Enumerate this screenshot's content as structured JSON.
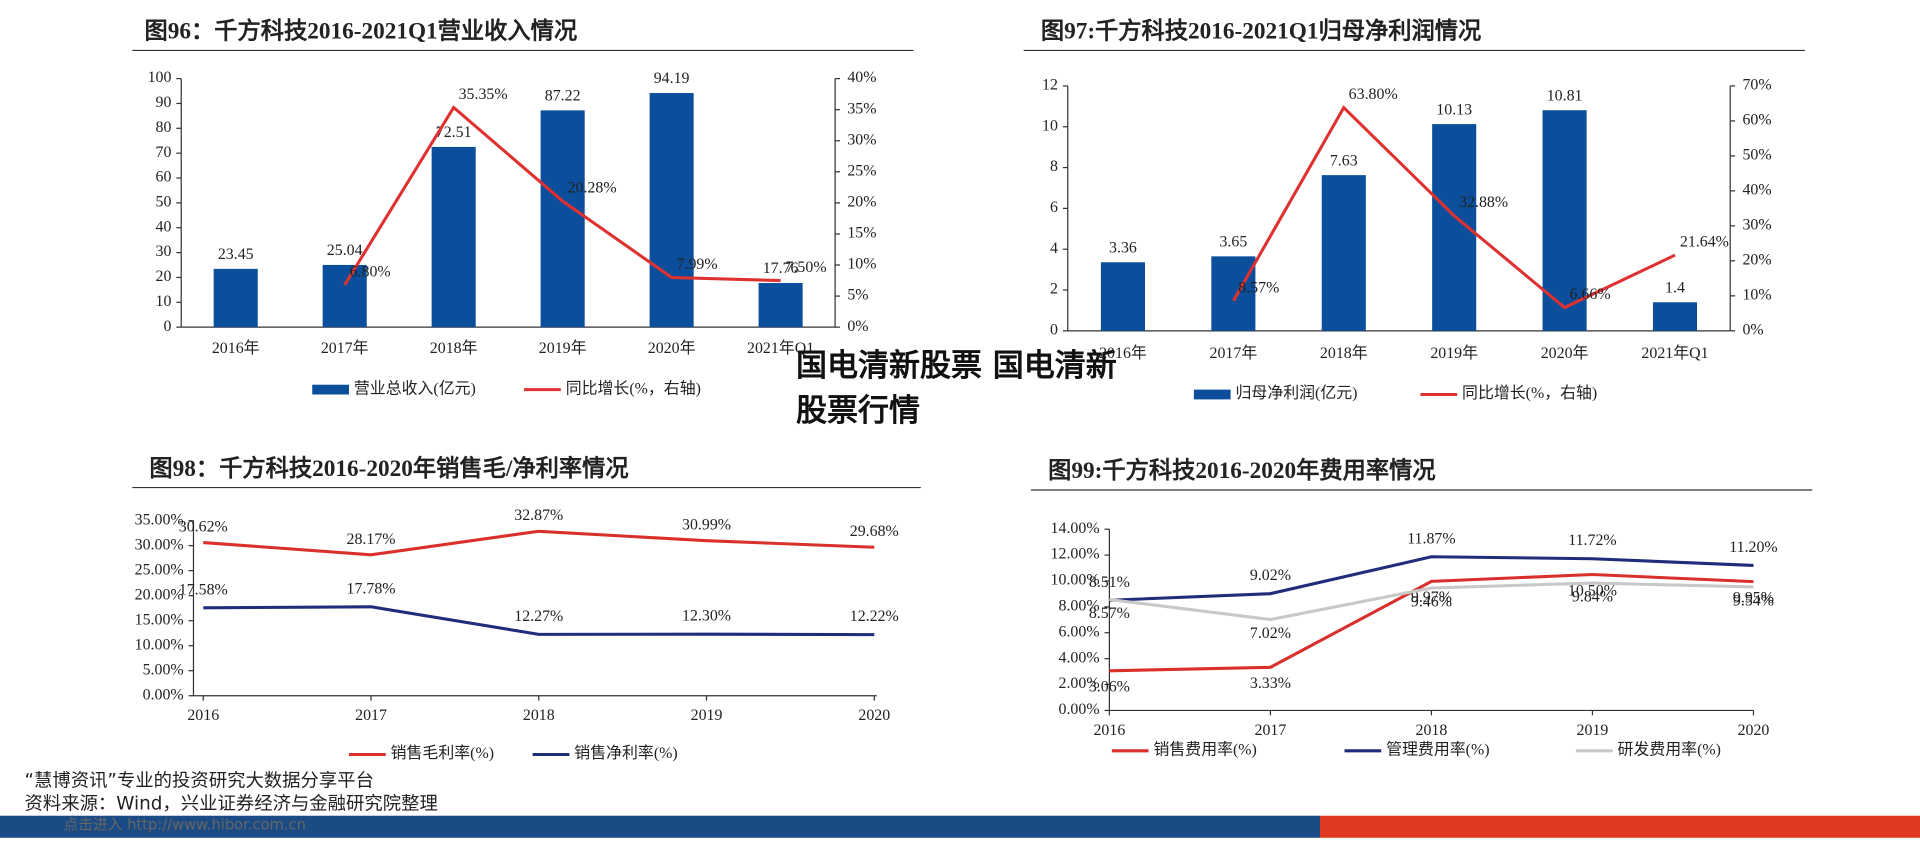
{
  "chart_data": [
    {
      "type": "bar",
      "title": "图96：千方科技2016-2021Q1营业收入情况",
      "categories": [
        "2016年",
        "2017年",
        "2018年",
        "2019年",
        "2020年",
        "2021年Q1"
      ],
      "series": [
        {
          "name": "营业总收入(亿元)",
          "type": "bar",
          "color": "#0b4f9c",
          "values": [
            23.45,
            25.04,
            72.51,
            87.22,
            94.19,
            17.76
          ]
        },
        {
          "name": "同比增长(%，右轴)",
          "type": "line",
          "axis": "y2",
          "color": "#e03131",
          "values": [
            null,
            6.8,
            35.35,
            20.28,
            7.99,
            7.5
          ],
          "value_labels": [
            null,
            "6.80%",
            "35.35%",
            "20.28%",
            "7.99%",
            "7.50%"
          ]
        }
      ],
      "ylim": [
        0,
        100
      ],
      "yticks": [
        0,
        10,
        20,
        30,
        40,
        50,
        60,
        70,
        80,
        90,
        100
      ],
      "y2lim": [
        0,
        40
      ],
      "y2ticks": [
        {
          "value": 0,
          "label": "0%"
        },
        {
          "value": 5,
          "label": "5%"
        },
        {
          "value": 10,
          "label": "10%"
        },
        {
          "value": 15,
          "label": "15%"
        },
        {
          "value": 20,
          "label": "20%"
        },
        {
          "value": 25,
          "label": "25%"
        },
        {
          "value": 30,
          "label": "30%"
        },
        {
          "value": 35,
          "label": "35%"
        },
        {
          "value": 40,
          "label": "40%"
        }
      ]
    },
    {
      "type": "bar",
      "title": "图97:千方科技2016-2021Q1归母净利润情况",
      "categories": [
        "2016年",
        "2017年",
        "2018年",
        "2019年",
        "2020年",
        "2021年Q1"
      ],
      "series": [
        {
          "name": "归母净利润(亿元)",
          "type": "bar",
          "color": "#0b4f9c",
          "values": [
            3.36,
            3.65,
            7.63,
            10.13,
            10.81,
            1.4
          ]
        },
        {
          "name": "同比增长(%，右轴)",
          "type": "line",
          "axis": "y2",
          "color": "#e03131",
          "values": [
            null,
            8.57,
            63.8,
            32.88,
            6.66,
            21.64
          ],
          "value_labels": [
            null,
            "8.57%",
            "63.80%",
            "32.88%",
            "6.66%",
            "21.64%"
          ]
        }
      ],
      "ylim": [
        0,
        12
      ],
      "yticks": [
        0,
        2,
        4,
        6,
        8,
        10,
        12
      ],
      "y2lim": [
        0,
        70
      ],
      "y2ticks": [
        {
          "value": 0,
          "label": "0%"
        },
        {
          "value": 10,
          "label": "10%"
        },
        {
          "value": 20,
          "label": "20%"
        },
        {
          "value": 30,
          "label": "30%"
        },
        {
          "value": 40,
          "label": "40%"
        },
        {
          "value": 50,
          "label": "50%"
        },
        {
          "value": 60,
          "label": "60%"
        },
        {
          "value": 70,
          "label": "70%"
        }
      ]
    },
    {
      "type": "line",
      "title": "图98：千方科技2016-2020年销售毛/净利率情况",
      "categories": [
        "2016",
        "2017",
        "2018",
        "2019",
        "2020"
      ],
      "series": [
        {
          "name": "销售毛利率(%)",
          "color": "#d9302c",
          "values": [
            30.62,
            28.17,
            32.87,
            30.99,
            29.68
          ],
          "value_labels": [
            "30.62%",
            "28.17%",
            "32.87%",
            "30.99%",
            "29.68%"
          ]
        },
        {
          "name": "销售净利率(%)",
          "color": "#1f2d7a",
          "values": [
            17.58,
            17.78,
            12.27,
            12.3,
            12.22
          ],
          "value_labels": [
            "17.58%",
            "17.78%",
            "12.27%",
            "12.30%",
            "12.22%"
          ]
        }
      ],
      "ylim": [
        0,
        35
      ],
      "yticks": [
        {
          "value": 0,
          "label": "0.00%"
        },
        {
          "value": 5,
          "label": "5.00%"
        },
        {
          "value": 10,
          "label": "10.00%"
        },
        {
          "value": 15,
          "label": "15.00%"
        },
        {
          "value": 20,
          "label": "20.00%"
        },
        {
          "value": 25,
          "label": "25.00%"
        },
        {
          "value": 30,
          "label": "30.00%"
        },
        {
          "value": 35,
          "label": "35.00%"
        }
      ]
    },
    {
      "type": "line",
      "title": "图99:千方科技2016-2020年费用率情况",
      "categories": [
        "2016",
        "2017",
        "2018",
        "2019",
        "2020"
      ],
      "series": [
        {
          "name": "销售费用率(%)",
          "color": "#d9302c",
          "values": [
            3.06,
            3.33,
            9.97,
            10.5,
            9.95
          ],
          "value_labels": [
            "3.06%",
            "3.33%",
            "9.97%",
            "10.50%",
            "9.95%"
          ]
        },
        {
          "name": "管理费用率(%)",
          "color": "#1f2d7a",
          "values": [
            8.51,
            9.02,
            11.87,
            11.72,
            11.2
          ],
          "value_labels": [
            "8.51%",
            "9.02%",
            "11.87%",
            "11.72%",
            "11.20%"
          ]
        },
        {
          "name": "研发费用率(%)",
          "color": "#c8c8c8",
          "values": [
            8.57,
            7.02,
            9.46,
            9.84,
            9.54
          ],
          "value_labels": [
            "8.57%",
            "7.02%",
            "9.46%",
            "9.84%",
            "9.54%"
          ]
        }
      ],
      "ylim": [
        0,
        14
      ],
      "yticks": [
        {
          "value": 0,
          "label": "0.00%"
        },
        {
          "value": 2,
          "label": "2.00%"
        },
        {
          "value": 4,
          "label": "4.00%"
        },
        {
          "value": 6,
          "label": "6.00%"
        },
        {
          "value": 8,
          "label": "8.00%"
        },
        {
          "value": 10,
          "label": "10.00%"
        },
        {
          "value": 12,
          "label": "12.00%"
        },
        {
          "value": 14,
          "label": "14.00%"
        }
      ]
    }
  ],
  "overlay": "国电清新股票 国电清新股票行情",
  "footer": {
    "platform": "“慧博资讯”专业的投资研究大数据分享平台",
    "source": "资料来源：Wind，兴业证券经济与金融研究院整理",
    "link": "点击进入 http://www.hibor.com.cn"
  }
}
